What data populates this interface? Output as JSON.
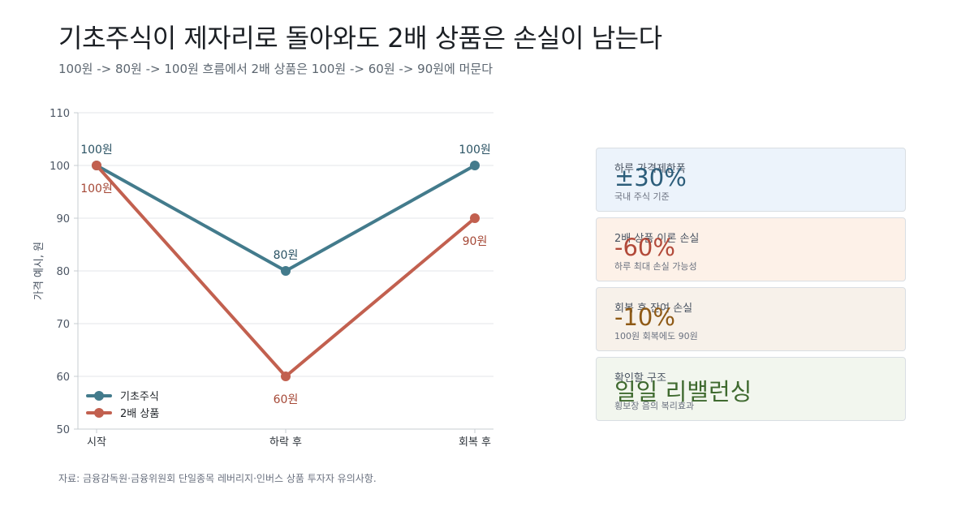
{
  "title": "기초주식이 제자리로 돌아와도 2배 상품은 손실이 남는다",
  "subtitle": "100원 -> 80원 -> 100원 흐름에서 2배 상품은 100원 -> 60원 -> 90원에 머문다",
  "source": "자료: 금융감독원·금융위원회 단일종목 레버리지·인버스 상품 투자자 유의사항.",
  "chart_data": {
    "type": "line",
    "categories": [
      "시작",
      "하락 후",
      "회복 후"
    ],
    "ylabel": "가격 예시, 원",
    "ylim": [
      50,
      110
    ],
    "yticks": [
      "50",
      "60",
      "70",
      "80",
      "90",
      "100",
      "110"
    ],
    "grid": true,
    "legend_position": "bottom-left",
    "series": [
      {
        "name": "기초주식",
        "color": "#437b8c",
        "values": [
          100,
          80,
          100
        ],
        "labels": [
          "100원",
          "80원",
          "100원"
        ],
        "label_position": "above"
      },
      {
        "name": "2배 상품",
        "color": "#c2604f",
        "values": [
          100,
          60,
          90
        ],
        "labels": [
          "100원",
          "60원",
          "90원"
        ],
        "label_position": "below"
      }
    ]
  },
  "cards": [
    {
      "label": "하루 가격제한폭",
      "value": "±30%",
      "note": "국내 주식 기준",
      "bg": "#ecf3fb",
      "value_color": "#2c5d7a"
    },
    {
      "label": "2배 상품 이론 손실",
      "value": "-60%",
      "note": "하루 최대 손실 가능성",
      "bg": "#fdf1e8",
      "value_color": "#b24a3a"
    },
    {
      "label": "회복 후 잔여 손실",
      "value": "-10%",
      "note": "100원 회복에도 90원",
      "bg": "#f7f1ea",
      "value_color": "#8f5a16"
    },
    {
      "label": "확인할 구조",
      "value": "일일 리밸런싱",
      "note": "횡보장 음의 복리효과",
      "bg": "#f2f6ee",
      "value_color": "#3f6a2f"
    }
  ]
}
